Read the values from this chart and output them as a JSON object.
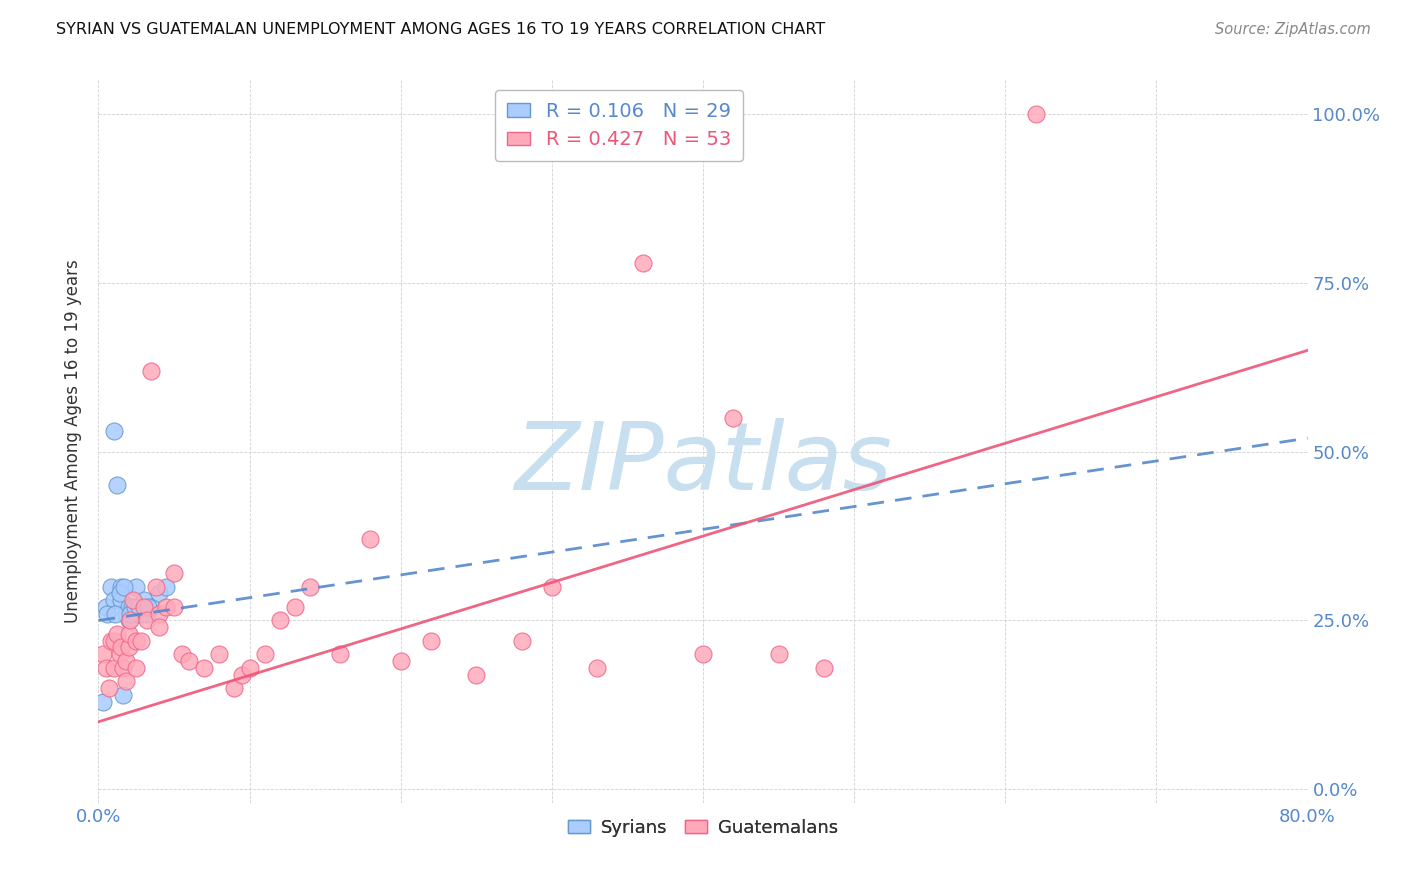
{
  "title": "SYRIAN VS GUATEMALAN UNEMPLOYMENT AMONG AGES 16 TO 19 YEARS CORRELATION CHART",
  "source": "Source: ZipAtlas.com",
  "ylabel": "Unemployment Among Ages 16 to 19 years",
  "xlim": [
    0,
    80
  ],
  "ylim": [
    -2,
    105
  ],
  "xtick_positions": [
    0,
    10,
    20,
    30,
    40,
    50,
    60,
    70,
    80
  ],
  "ytick_positions": [
    0,
    25,
    50,
    75,
    100
  ],
  "ytick_labels": [
    "0.0%",
    "25.0%",
    "50.0%",
    "75.0%",
    "100.0%"
  ],
  "syrian_color": "#aaccff",
  "syrian_edge_color": "#6699cc",
  "guatemalan_color": "#ffaabb",
  "guatemalan_edge_color": "#ee6688",
  "syrian_line_color": "#5588cc",
  "guatemalan_line_color": "#ee5577",
  "watermark": "ZIPatlas",
  "watermark_color": "#c8dff0",
  "legend1_label1": "R = 0.106   N = 29",
  "legend1_label2": "R = 0.427   N = 53",
  "legend1_color1": "#5588cc",
  "legend1_color2": "#ee5577",
  "legend2_label1": "Syrians",
  "legend2_label2": "Guatemalans",
  "syrians_x": [
    0.5,
    0.8,
    1.0,
    1.0,
    1.2,
    1.5,
    1.5,
    1.8,
    2.0,
    2.0,
    2.2,
    2.5,
    2.5,
    2.8,
    3.0,
    3.2,
    3.5,
    4.0,
    4.5,
    0.3,
    0.6,
    1.1,
    1.4,
    1.7,
    2.1,
    2.4,
    2.7,
    3.3,
    1.6
  ],
  "syrians_y": [
    27,
    30,
    53,
    28,
    45,
    30,
    28,
    26,
    27,
    25,
    27,
    26,
    30,
    26,
    28,
    26,
    27,
    29,
    30,
    13,
    26,
    26,
    29,
    30,
    26,
    27,
    27,
    27,
    14
  ],
  "guatemalans_x": [
    0.3,
    0.5,
    0.7,
    0.8,
    1.0,
    1.0,
    1.2,
    1.4,
    1.5,
    1.6,
    1.8,
    1.8,
    2.0,
    2.0,
    2.1,
    2.3,
    2.5,
    2.5,
    2.8,
    3.0,
    3.2,
    3.5,
    3.8,
    4.0,
    4.0,
    4.5,
    5.0,
    5.0,
    5.5,
    6.0,
    7.0,
    8.0,
    9.0,
    9.5,
    10.0,
    11.0,
    12.0,
    13.0,
    14.0,
    16.0,
    18.0,
    20.0,
    22.0,
    25.0,
    28.0,
    30.0,
    33.0,
    36.0,
    40.0,
    42.0,
    45.0,
    48.0,
    62.0
  ],
  "guatemalans_y": [
    20,
    18,
    15,
    22,
    18,
    22,
    23,
    20,
    21,
    18,
    19,
    16,
    21,
    23,
    25,
    28,
    22,
    18,
    22,
    27,
    25,
    62,
    30,
    26,
    24,
    27,
    27,
    32,
    20,
    19,
    18,
    20,
    15,
    17,
    18,
    20,
    25,
    27,
    30,
    20,
    37,
    19,
    22,
    17,
    22,
    30,
    18,
    78,
    20,
    55,
    20,
    18,
    100
  ],
  "syrian_line_x0": 0,
  "syrian_line_y0": 25,
  "syrian_line_x1": 80,
  "syrian_line_y1": 52,
  "guatemalan_line_x0": 0,
  "guatemalan_line_y0": 10,
  "guatemalan_line_x1": 80,
  "guatemalan_line_y1": 65
}
